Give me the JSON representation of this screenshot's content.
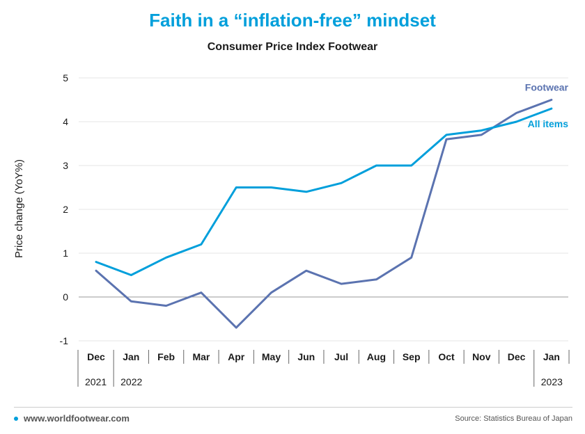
{
  "header": {
    "title": "Faith in a “inflation-free” mindset",
    "subtitle": "Consumer Price Index Footwear"
  },
  "chart_data": {
    "type": "line",
    "ylabel": "Price change (YoY%)",
    "ylim": [
      -1,
      5
    ],
    "yticks": [
      -1,
      0,
      1,
      2,
      3,
      4,
      5
    ],
    "categories": [
      "Dec",
      "Jan",
      "Feb",
      "Mar",
      "Apr",
      "May",
      "Jun",
      "Jul",
      "Aug",
      "Sep",
      "Oct",
      "Nov",
      "Dec",
      "Jan"
    ],
    "years": [
      {
        "label": "2021",
        "start_index": 0
      },
      {
        "label": "2022",
        "start_index": 1
      },
      {
        "label": "2023",
        "start_index": 13
      }
    ],
    "series": [
      {
        "name": "Footwear",
        "color": "#5b73b0",
        "values": [
          0.6,
          -0.1,
          -0.2,
          0.1,
          -0.7,
          0.1,
          0.6,
          0.3,
          0.4,
          0.9,
          3.6,
          3.7,
          4.2,
          4.5
        ]
      },
      {
        "name": "All items",
        "color": "#009fdb",
        "values": [
          0.8,
          0.5,
          0.9,
          1.2,
          2.5,
          2.5,
          2.4,
          2.6,
          3.0,
          3.0,
          3.7,
          3.8,
          4.0,
          4.3
        ]
      }
    ],
    "grid": true,
    "legend": "inline labels at line ends"
  },
  "footer": {
    "website": "www.worldfootwear.com",
    "source": "Source: Statistics Bureau of Japan"
  },
  "colors": {
    "accent": "#009fdb",
    "footwear": "#5b73b0"
  }
}
